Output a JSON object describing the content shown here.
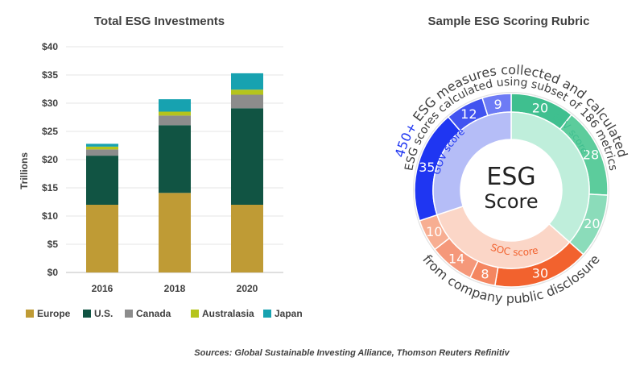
{
  "chart_data": [
    {
      "type": "bar",
      "title": "Total ESG Investments",
      "ylabel": "Trillions",
      "xlabel": "",
      "stacked": true,
      "categories": [
        "2016",
        "2018",
        "2020"
      ],
      "ylim": [
        0,
        40
      ],
      "ytick_labels": [
        "$0",
        "$5",
        "$10",
        "$15",
        "$20",
        "$25",
        "$30",
        "$35",
        "$40"
      ],
      "legend_position": "bottom",
      "series": [
        {
          "name": "Europe",
          "color": "#bf9b35",
          "values": [
            12.0,
            14.1,
            12.0
          ]
        },
        {
          "name": "U.S.",
          "color": "#115443",
          "values": [
            8.7,
            12.0,
            17.1
          ]
        },
        {
          "name": "Canada",
          "color": "#8c8c8c",
          "values": [
            1.1,
            1.7,
            2.4
          ]
        },
        {
          "name": "Australasia",
          "color": "#b5c41c",
          "values": [
            0.5,
            0.7,
            0.9
          ]
        },
        {
          "name": "Japan",
          "color": "#17a2b0",
          "values": [
            0.5,
            2.2,
            2.9
          ]
        }
      ]
    },
    {
      "type": "pie",
      "title": "Sample ESG Scoring Rubric",
      "center_label": [
        "ESG",
        "Score"
      ],
      "ring_labels": {
        "env": "ENV score",
        "soc": "SOC score",
        "gov": "GOV score"
      },
      "slices": [
        {
          "group": "env",
          "value": 20,
          "label": "20",
          "color": "#3fbf8f"
        },
        {
          "group": "env",
          "value": 28,
          "label": "28",
          "color": "#5ccc9c"
        },
        {
          "group": "env",
          "value": 20,
          "label": "20",
          "color": "#8bdcba"
        },
        {
          "group": "soc",
          "value": 30,
          "label": "30",
          "color": "#f2622e"
        },
        {
          "group": "soc",
          "value": 8,
          "label": "8",
          "color": "#f48660"
        },
        {
          "group": "soc",
          "value": 14,
          "label": "14",
          "color": "#f5987a"
        },
        {
          "group": "soc",
          "value": 10,
          "label": "10",
          "color": "#f7ae92"
        },
        {
          "group": "gov",
          "value": 35,
          "label": "35",
          "color": "#1f36f2"
        },
        {
          "group": "gov",
          "value": 12,
          "label": "12",
          "color": "#4153f0"
        },
        {
          "group": "gov",
          "value": 9,
          "label": "9",
          "color": "#6d7bf5"
        }
      ],
      "ring_colors": {
        "env": "#bfeedb",
        "soc": "#fbd6c7",
        "gov": "#b5bdf7"
      },
      "arc_text": {
        "outer_highlight": "450+",
        "outer": " ESG measures collected and calculated",
        "inner": "ESG scores calculated using subset of 186 metrics",
        "bottom": "from company public disclosure"
      }
    }
  ],
  "source_note": "Sources: Global Sustainable Investing Alliance, Thomson Reuters Refinitiv"
}
